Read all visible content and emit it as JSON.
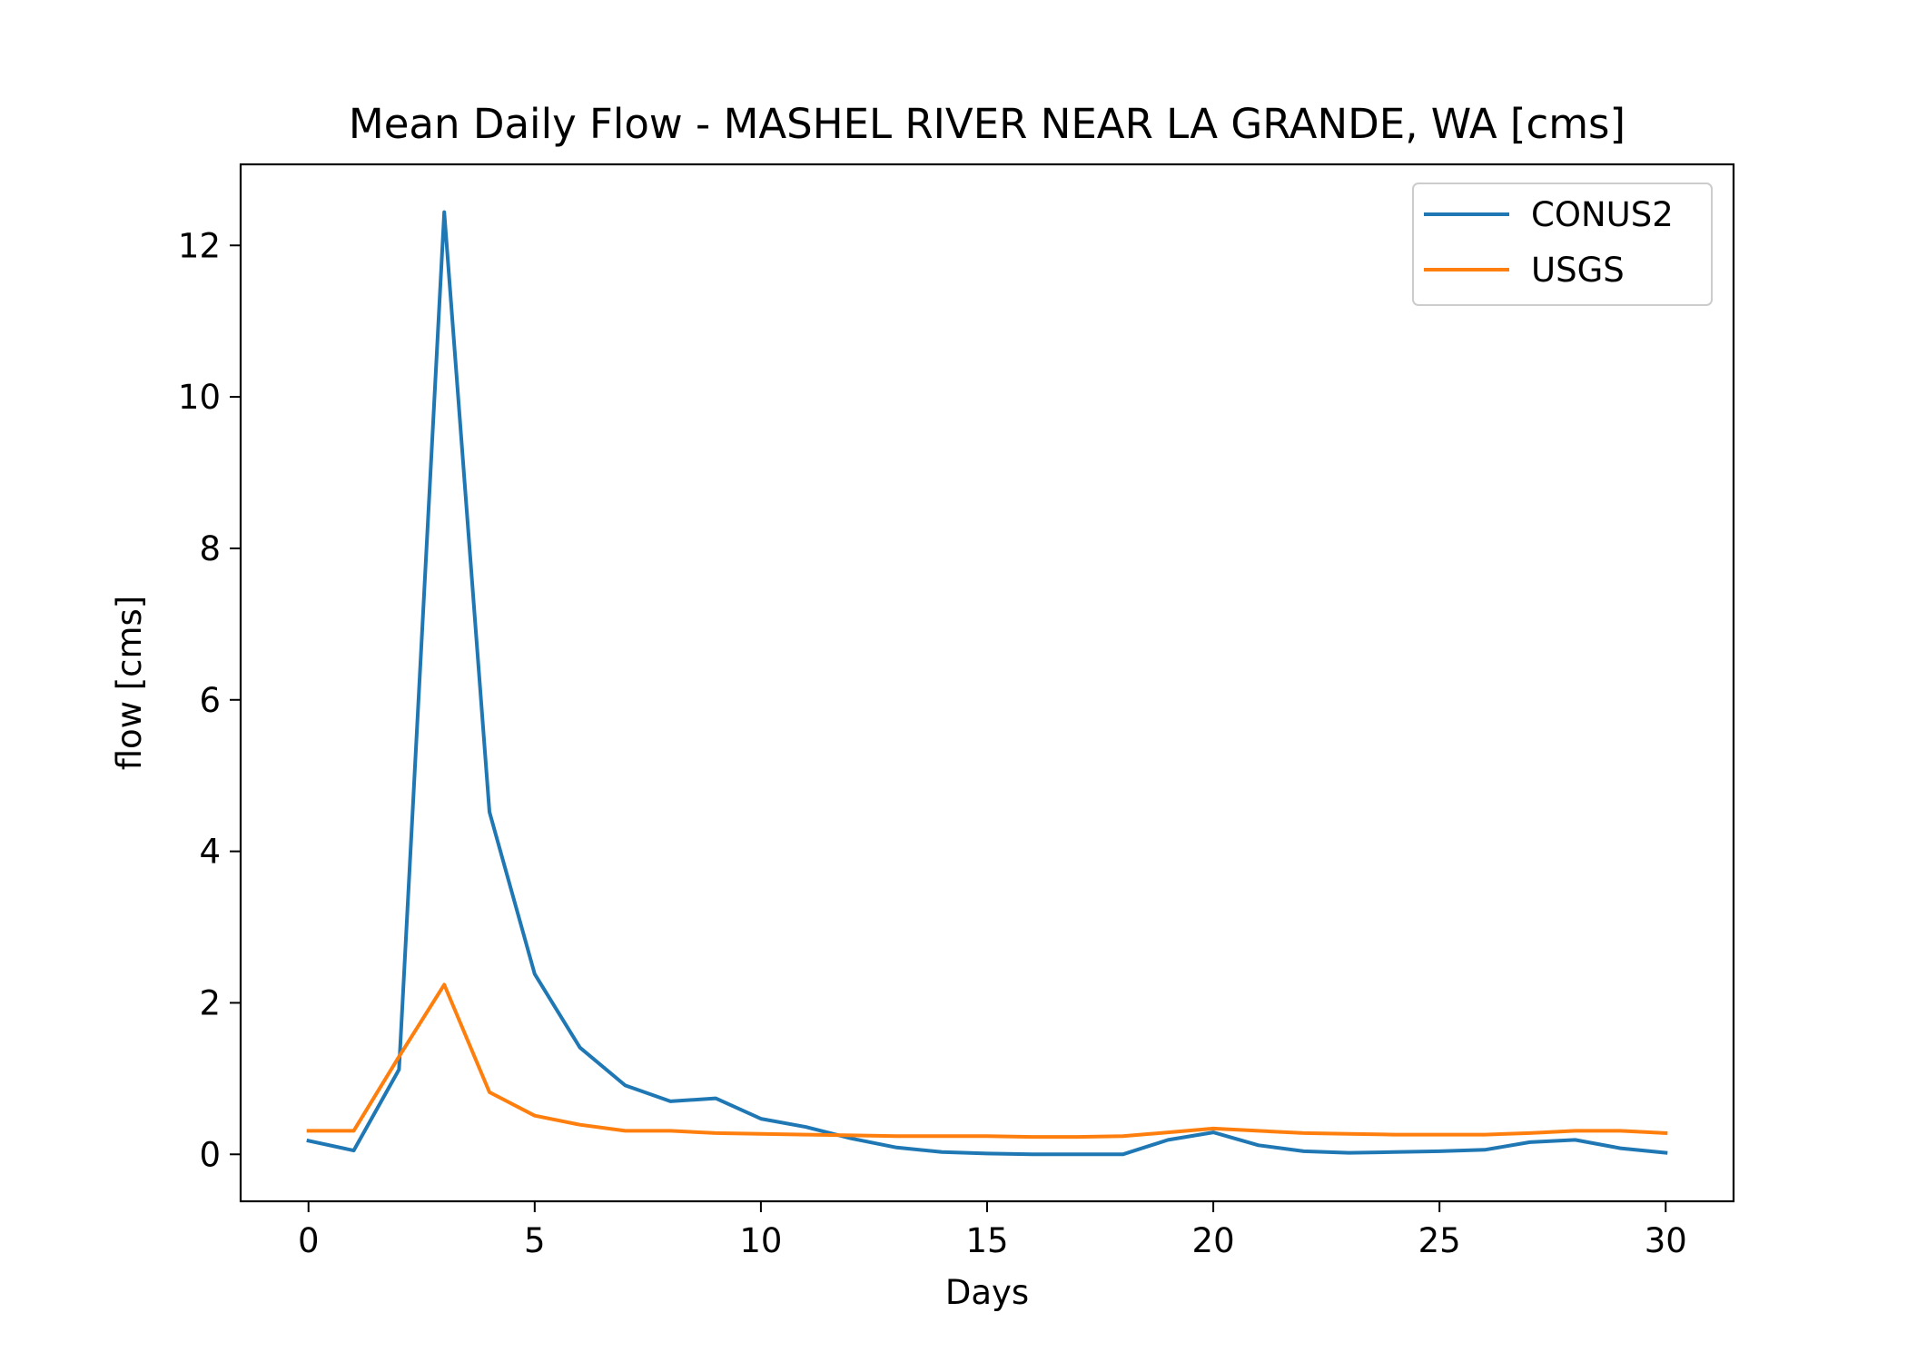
{
  "chart_data": {
    "type": "line",
    "title": "Mean Daily Flow - MASHEL RIVER NEAR LA GRANDE, WA [cms]",
    "xlabel": "Days",
    "ylabel": "flow [cms]",
    "xlim": [
      -1.5,
      31.5
    ],
    "ylim": [
      -0.62,
      13.07
    ],
    "xticks": [
      0,
      5,
      10,
      15,
      20,
      25,
      30
    ],
    "yticks": [
      0,
      2,
      4,
      6,
      8,
      10,
      12
    ],
    "grid": false,
    "legend_position": "upper right",
    "x": [
      0,
      1,
      2,
      3,
      4,
      5,
      6,
      7,
      8,
      9,
      10,
      11,
      12,
      13,
      14,
      15,
      16,
      17,
      18,
      19,
      20,
      21,
      22,
      23,
      24,
      25,
      26,
      27,
      28,
      29,
      30
    ],
    "series": [
      {
        "name": "CONUS2",
        "color": "#1f77b4",
        "values": [
          0.18,
          0.05,
          1.12,
          12.44,
          4.52,
          2.38,
          1.41,
          0.91,
          0.7,
          0.74,
          0.47,
          0.36,
          0.21,
          0.09,
          0.03,
          0.01,
          0.0,
          0.0,
          0.0,
          0.19,
          0.29,
          0.12,
          0.04,
          0.02,
          0.03,
          0.04,
          0.06,
          0.16,
          0.19,
          0.08,
          0.02
        ]
      },
      {
        "name": "USGS",
        "color": "#ff7f0e",
        "values": [
          0.31,
          0.31,
          1.29,
          2.24,
          0.82,
          0.51,
          0.39,
          0.31,
          0.31,
          0.28,
          0.27,
          0.26,
          0.25,
          0.24,
          0.24,
          0.24,
          0.23,
          0.23,
          0.24,
          0.29,
          0.34,
          0.31,
          0.28,
          0.27,
          0.26,
          0.26,
          0.26,
          0.28,
          0.31,
          0.31,
          0.28
        ]
      }
    ]
  }
}
